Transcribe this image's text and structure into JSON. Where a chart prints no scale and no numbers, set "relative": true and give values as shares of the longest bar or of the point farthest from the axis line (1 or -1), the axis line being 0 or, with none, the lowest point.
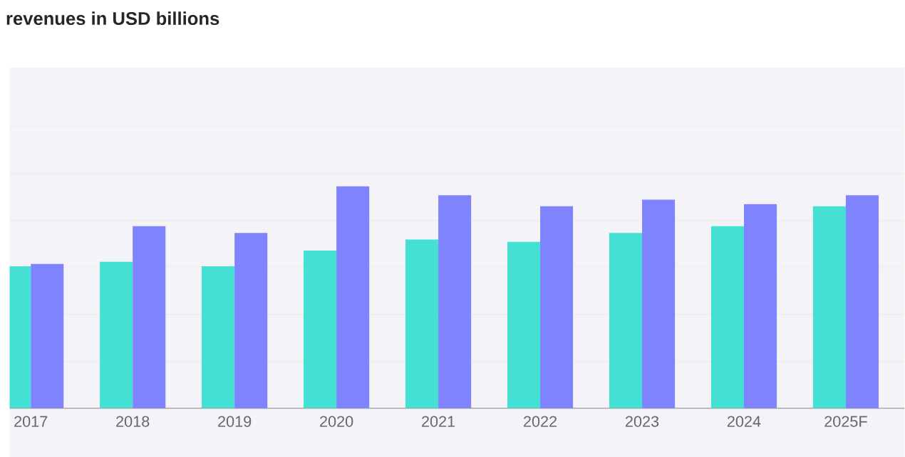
{
  "chart_data": {
    "type": "bar",
    "title": "revenues in USD billions",
    "relative": true,
    "grid": "y",
    "categories": [
      "2017",
      "2018",
      "2019",
      "2020",
      "2021",
      "2022",
      "2023",
      "2024",
      "2025F"
    ],
    "series": [
      {
        "color": "#43e0d3",
        "values": [
          0.64,
          0.66,
          0.64,
          0.71,
          0.76,
          0.75,
          0.79,
          0.82,
          0.91
        ]
      },
      {
        "color": "#7f84fe",
        "values": [
          0.65,
          0.82,
          0.79,
          1,
          0.96,
          0.91,
          0.94,
          0.92,
          0.96
        ]
      }
    ]
  }
}
